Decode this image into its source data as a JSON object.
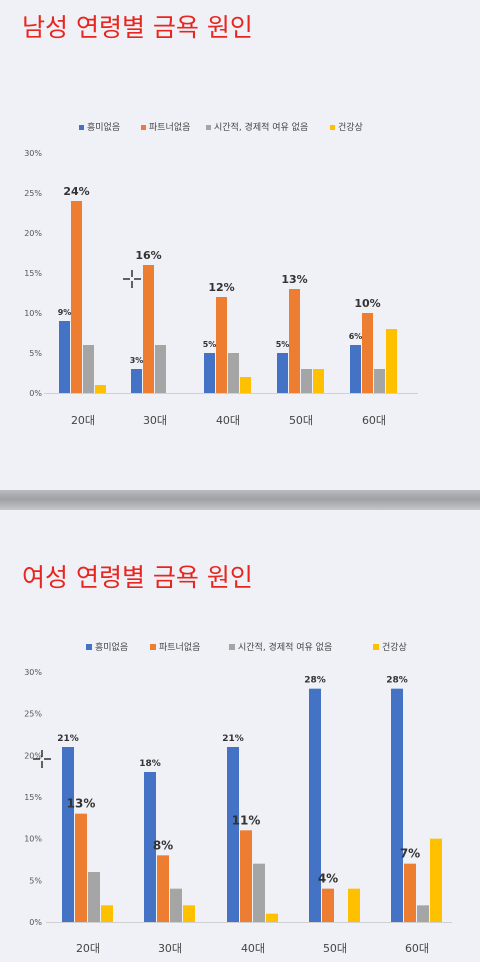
{
  "colors": {
    "title": "#e8261f",
    "series": [
      "#4472c4",
      "#ed7d31",
      "#a5a5a5",
      "#ffc000"
    ]
  },
  "icons": {
    "cursor": "crosshair-cursor-icon"
  },
  "chart_data": [
    {
      "type": "bar",
      "title": "남성 연령별 금욕 원인",
      "xlabel": "",
      "ylabel": "",
      "ylim": [
        0,
        30
      ],
      "yticks": [
        "0%",
        "5%",
        "10%",
        "15%",
        "20%",
        "25%",
        "30%"
      ],
      "legend_position": "top",
      "grid": false,
      "categories": [
        "20대",
        "30대",
        "40대",
        "50대",
        "60대"
      ],
      "series": [
        {
          "name": "흥미없음",
          "values": [
            9,
            3,
            5,
            5,
            6
          ]
        },
        {
          "name": "파트너없음",
          "values": [
            24,
            16,
            12,
            13,
            10
          ]
        },
        {
          "name": "시간적, 경제적 여유 없음",
          "values": [
            6,
            6,
            5,
            3,
            3
          ]
        },
        {
          "name": "건강상",
          "values": [
            1,
            0,
            2,
            3,
            8
          ]
        }
      ],
      "data_labels": [
        {
          "series": 0,
          "category": 0,
          "text": "9%"
        },
        {
          "series": 0,
          "category": 1,
          "text": "3%"
        },
        {
          "series": 0,
          "category": 2,
          "text": "5%"
        },
        {
          "series": 0,
          "category": 3,
          "text": "5%"
        },
        {
          "series": 0,
          "category": 4,
          "text": "6%"
        },
        {
          "series": 1,
          "category": 0,
          "text": "24%"
        },
        {
          "series": 1,
          "category": 1,
          "text": "16%"
        },
        {
          "series": 1,
          "category": 2,
          "text": "12%"
        },
        {
          "series": 1,
          "category": 3,
          "text": "13%"
        },
        {
          "series": 1,
          "category": 4,
          "text": "10%"
        }
      ]
    },
    {
      "type": "bar",
      "title": "여성 연령별 금욕 원인",
      "xlabel": "",
      "ylabel": "",
      "ylim": [
        0,
        30
      ],
      "yticks": [
        "0%",
        "5%",
        "10%",
        "15%",
        "20%",
        "25%",
        "30%"
      ],
      "legend_position": "top",
      "grid": false,
      "categories": [
        "20대",
        "30대",
        "40대",
        "50대",
        "60대"
      ],
      "series": [
        {
          "name": "흥미없음",
          "values": [
            21,
            18,
            21,
            28,
            28
          ]
        },
        {
          "name": "파트너없음",
          "values": [
            13,
            8,
            11,
            4,
            7
          ]
        },
        {
          "name": "시간적, 경제적 여유 없음",
          "values": [
            6,
            4,
            7,
            0,
            2
          ]
        },
        {
          "name": "건강상",
          "values": [
            2,
            2,
            1,
            4,
            10
          ]
        }
      ],
      "data_labels": [
        {
          "series": 0,
          "category": 0,
          "text": "21%"
        },
        {
          "series": 0,
          "category": 1,
          "text": "18%"
        },
        {
          "series": 0,
          "category": 2,
          "text": "21%"
        },
        {
          "series": 0,
          "category": 3,
          "text": "28%"
        },
        {
          "series": 0,
          "category": 4,
          "text": "28%"
        },
        {
          "series": 1,
          "category": 0,
          "text": "13%"
        },
        {
          "series": 1,
          "category": 1,
          "text": "8%"
        },
        {
          "series": 1,
          "category": 2,
          "text": "11%"
        },
        {
          "series": 1,
          "category": 3,
          "text": "4%"
        },
        {
          "series": 1,
          "category": 4,
          "text": "7%"
        }
      ]
    }
  ]
}
